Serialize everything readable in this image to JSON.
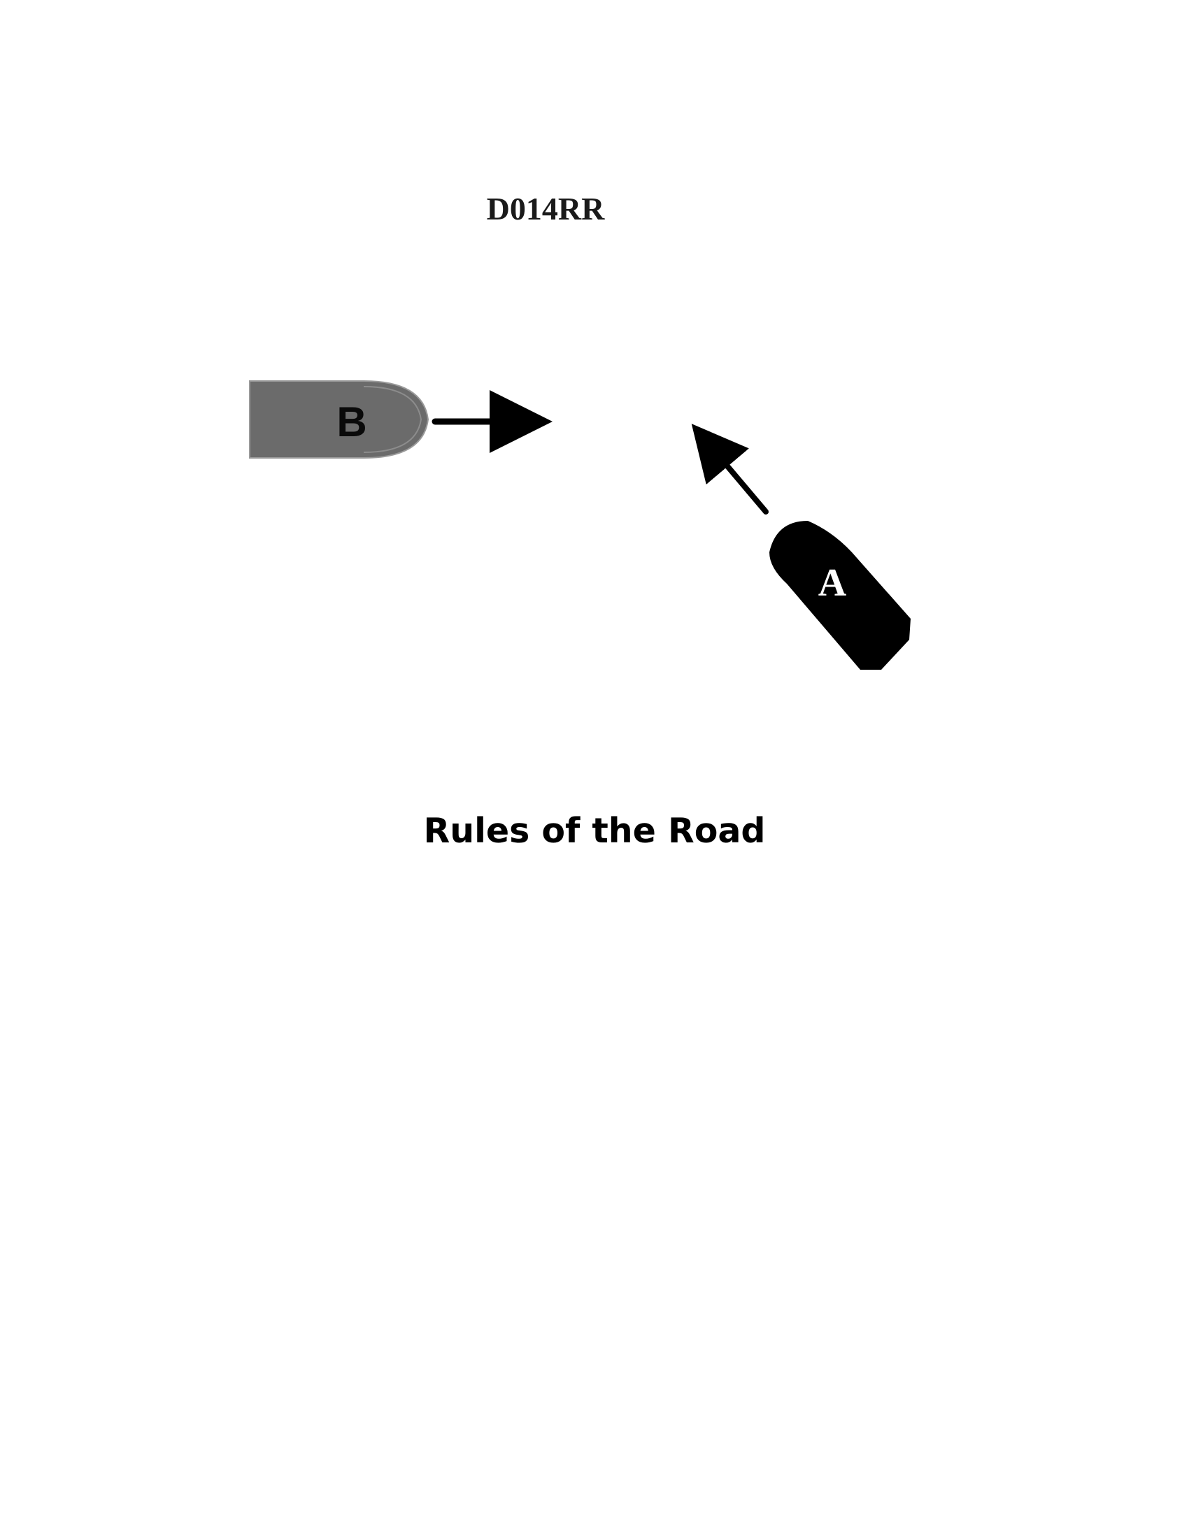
{
  "diagram": {
    "code": "D014RR",
    "vessels": [
      {
        "label": "B",
        "color": "#6b6b6b",
        "heading": "east"
      },
      {
        "label": "A",
        "color": "#000000",
        "heading": "north-west"
      }
    ]
  },
  "caption": "Rules of the Road"
}
